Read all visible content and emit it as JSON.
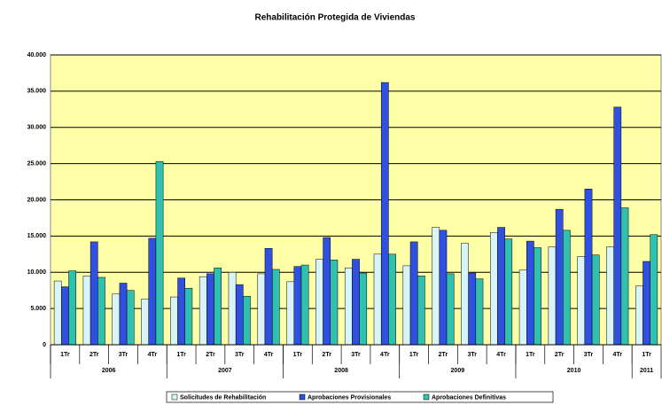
{
  "chart_data": {
    "type": "bar",
    "title": "Rehabilitación Protegida de Viviendas",
    "categories": [
      "1Tr",
      "2Tr",
      "3Tr",
      "4Tr",
      "1Tr",
      "2Tr",
      "3Tr",
      "4Tr",
      "1Tr",
      "2Tr",
      "3Tr",
      "4Tr",
      "1Tr",
      "2Tr",
      "3Tr",
      "4Tr",
      "1Tr",
      "2Tr",
      "3Tr",
      "4Tr",
      "1Tr"
    ],
    "years": [
      {
        "label": "2006",
        "count": 4
      },
      {
        "label": "2007",
        "count": 4
      },
      {
        "label": "2008",
        "count": 4
      },
      {
        "label": "2009",
        "count": 4
      },
      {
        "label": "2010",
        "count": 4
      },
      {
        "label": "2011",
        "count": 1
      }
    ],
    "series": [
      {
        "name": "Solicitudes de Rehabilitación",
        "color": "#d8f4f8",
        "values": [
          8800,
          9500,
          7000,
          6300,
          6600,
          9400,
          10000,
          9800,
          8700,
          11800,
          10600,
          12500,
          10900,
          16200,
          14000,
          15500,
          10300,
          13500,
          12200,
          13500,
          8100
        ]
      },
      {
        "name": "Aprobaciones Provisionales",
        "color": "#3050e0",
        "values": [
          8000,
          14200,
          8500,
          14700,
          9200,
          9800,
          8300,
          13300,
          10800,
          14800,
          11800,
          36200,
          14200,
          15800,
          9900,
          16200,
          14300,
          18700,
          21500,
          32800,
          11500
        ]
      },
      {
        "name": "Aprobaciones Definitivas",
        "color": "#30c0b0",
        "values": [
          10200,
          9300,
          7500,
          25300,
          7800,
          10600,
          6700,
          10400,
          11000,
          11700,
          9900,
          12500,
          9500,
          9800,
          9100,
          14600,
          13400,
          15800,
          12400,
          18900,
          15200
        ]
      }
    ],
    "ylim": [
      0,
      40000
    ],
    "yticks": [
      0,
      {
        "value": 5000,
        "label": "5.000"
      },
      {
        "value": 10000,
        "label": "10.000"
      },
      {
        "value": 15000,
        "label": "15.000"
      },
      {
        "value": 20000,
        "label": "20.000"
      },
      {
        "value": 25000,
        "label": "25.000"
      },
      {
        "value": 30000,
        "label": "30.000"
      },
      {
        "value": 35000,
        "label": "35.000"
      },
      {
        "value": 40000,
        "label": "40.000"
      }
    ],
    "grid": true,
    "background": "#ffffa8",
    "legend": "bottom"
  }
}
